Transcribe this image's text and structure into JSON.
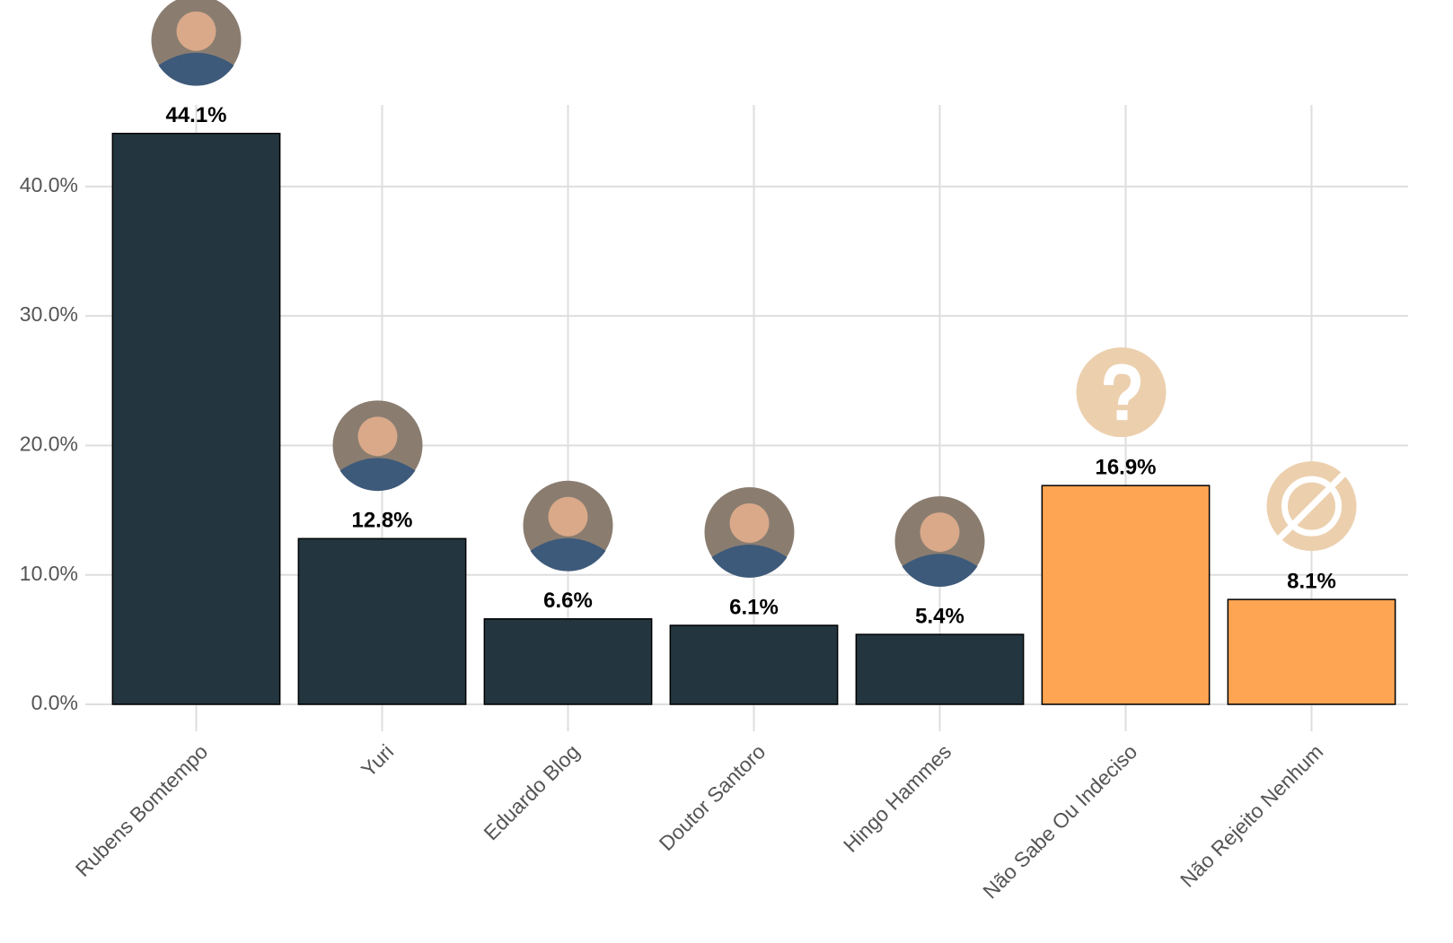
{
  "chart_data": {
    "type": "bar",
    "categories": [
      "Rubens Bomtempo",
      "Yuri",
      "Eduardo Blog",
      "Doutor Santoro",
      "Hingo Hammes",
      "Não Sabe Ou Indeciso",
      "Não Rejeito Nenhum"
    ],
    "values": [
      44.1,
      12.8,
      6.6,
      6.1,
      5.4,
      16.9,
      8.1
    ],
    "value_labels": [
      "44.1%",
      "12.8%",
      "6.6%",
      "6.1%",
      "5.4%",
      "16.9%",
      "8.1%"
    ],
    "colors": [
      "#233640",
      "#233640",
      "#233640",
      "#233640",
      "#233640",
      "#fda552",
      "#fda552"
    ],
    "ylim": [
      0,
      46.3
    ],
    "yticks": [
      {
        "value": 0,
        "label": "0.0%"
      },
      {
        "value": 10,
        "label": "10.0%"
      },
      {
        "value": 20,
        "label": "20.0%"
      },
      {
        "value": 30,
        "label": "30.0%"
      },
      {
        "value": 40,
        "label": "40.0%"
      }
    ],
    "grid": true
  }
}
